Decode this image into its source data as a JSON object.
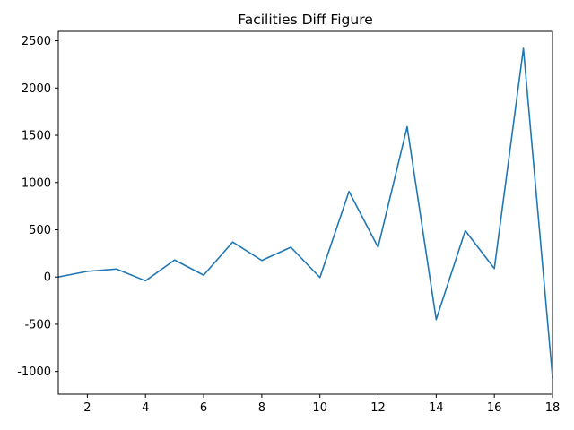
{
  "chart_data": {
    "type": "line",
    "title": "Facilities Diff Figure",
    "xlabel": "",
    "ylabel": "",
    "xlim": [
      1,
      18
    ],
    "ylim": [
      -1240,
      2600
    ],
    "xticks": [
      2,
      4,
      6,
      8,
      10,
      12,
      14,
      16,
      18
    ],
    "yticks": [
      -1000,
      -500,
      0,
      500,
      1000,
      1500,
      2000,
      2500
    ],
    "grid": false,
    "series": [
      {
        "color": "#1f77b4",
        "x": [
          1,
          2,
          3,
          4,
          5,
          6,
          7,
          8,
          9,
          10,
          11,
          12,
          13,
          14,
          15,
          16,
          17,
          18
        ],
        "values": [
          0,
          60,
          85,
          -40,
          180,
          20,
          370,
          175,
          315,
          -5,
          905,
          315,
          1590,
          -450,
          490,
          90,
          2420,
          -1060
        ]
      }
    ]
  }
}
